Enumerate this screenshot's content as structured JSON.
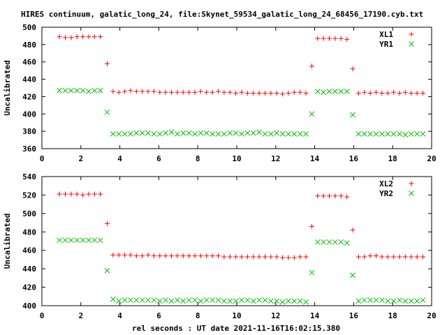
{
  "title": "HIRES continuum, galatic_long_24, file:Skynet_59534_galatic_long_24_68456_17190.cyb.txt",
  "xlabel": "rel seconds : UT date 2021-11-16T16:02:15.380",
  "colors": {
    "series1": "#ff0000",
    "series2": "#00c000",
    "axis": "#000000"
  },
  "chart_data": [
    {
      "type": "scatter",
      "ylabel": "Uncalibrated",
      "xlim": [
        0,
        20
      ],
      "ylim": [
        360,
        500
      ],
      "xticks": [
        0,
        2,
        4,
        6,
        8,
        10,
        12,
        14,
        16,
        18,
        20
      ],
      "yticks": [
        360,
        380,
        400,
        420,
        440,
        460,
        480,
        500
      ],
      "legend_position": "top-right",
      "grid": false,
      "series": [
        {
          "name": "XL1",
          "marker": "+",
          "x": [
            0.9,
            1.2,
            1.5,
            1.8,
            2.1,
            2.4,
            2.7,
            3.0,
            3.35,
            3.65,
            3.95,
            4.25,
            4.55,
            4.85,
            5.15,
            5.45,
            5.75,
            6.05,
            6.35,
            6.65,
            6.95,
            7.25,
            7.55,
            7.85,
            8.15,
            8.45,
            8.75,
            9.05,
            9.35,
            9.65,
            9.95,
            10.25,
            10.55,
            10.85,
            11.15,
            11.45,
            11.75,
            12.05,
            12.35,
            12.65,
            12.95,
            13.25,
            13.55,
            13.85,
            14.15,
            14.45,
            14.75,
            15.05,
            15.35,
            15.65,
            15.95,
            16.25,
            16.55,
            16.85,
            17.15,
            17.45,
            17.75,
            18.05,
            18.35,
            18.65,
            18.95,
            19.25,
            19.55
          ],
          "y": [
            489,
            488,
            488,
            489,
            489,
            489,
            489,
            489,
            458,
            426,
            425,
            426,
            427,
            426,
            426,
            426,
            426,
            425,
            425,
            425,
            425,
            425,
            425,
            425,
            426,
            425,
            425,
            426,
            425,
            425,
            424,
            425,
            424,
            424,
            424,
            424,
            424,
            424,
            423,
            424,
            425,
            425,
            424,
            455,
            487,
            487,
            487,
            487,
            487,
            486,
            452,
            424,
            425,
            424,
            425,
            424,
            424,
            425,
            424,
            425,
            424,
            424,
            424
          ]
        },
        {
          "name": "YR1",
          "marker": "x",
          "x": [
            0.9,
            1.2,
            1.5,
            1.8,
            2.1,
            2.4,
            2.7,
            3.0,
            3.35,
            3.65,
            3.95,
            4.25,
            4.55,
            4.85,
            5.15,
            5.45,
            5.75,
            6.05,
            6.35,
            6.65,
            6.95,
            7.25,
            7.55,
            7.85,
            8.15,
            8.45,
            8.75,
            9.05,
            9.35,
            9.65,
            9.95,
            10.25,
            10.55,
            10.85,
            11.15,
            11.45,
            11.75,
            12.05,
            12.35,
            12.65,
            12.95,
            13.25,
            13.55,
            13.85,
            14.15,
            14.45,
            14.75,
            15.05,
            15.35,
            15.65,
            15.95,
            16.25,
            16.55,
            16.85,
            17.15,
            17.45,
            17.75,
            18.05,
            18.35,
            18.65,
            18.95,
            19.25,
            19.55
          ],
          "y": [
            427,
            427,
            427,
            427,
            427,
            426,
            427,
            427,
            402,
            377,
            377,
            377,
            377,
            378,
            378,
            378,
            377,
            377,
            378,
            379,
            377,
            378,
            378,
            377,
            378,
            378,
            377,
            377,
            377,
            378,
            378,
            377,
            378,
            378,
            379,
            377,
            377,
            378,
            377,
            377,
            377,
            377,
            377,
            400,
            426,
            425,
            426,
            426,
            426,
            426,
            399,
            377,
            377,
            377,
            377,
            377,
            377,
            377,
            377,
            376,
            377,
            377,
            377
          ]
        }
      ]
    },
    {
      "type": "scatter",
      "ylabel": "Uncalibrated",
      "xlim": [
        0,
        20
      ],
      "ylim": [
        400,
        540
      ],
      "xticks": [
        0,
        2,
        4,
        6,
        8,
        10,
        12,
        14,
        16,
        18,
        20
      ],
      "yticks": [
        400,
        420,
        440,
        460,
        480,
        500,
        520,
        540
      ],
      "legend_position": "top-right",
      "grid": false,
      "series": [
        {
          "name": "XL2",
          "marker": "+",
          "x": [
            0.9,
            1.2,
            1.5,
            1.8,
            2.1,
            2.4,
            2.7,
            3.0,
            3.35,
            3.65,
            3.95,
            4.25,
            4.55,
            4.85,
            5.15,
            5.45,
            5.75,
            6.05,
            6.35,
            6.65,
            6.95,
            7.25,
            7.55,
            7.85,
            8.15,
            8.45,
            8.75,
            9.05,
            9.35,
            9.65,
            9.95,
            10.25,
            10.55,
            10.85,
            11.15,
            11.45,
            11.75,
            12.05,
            12.35,
            12.65,
            12.95,
            13.25,
            13.55,
            13.85,
            14.15,
            14.45,
            14.75,
            15.05,
            15.35,
            15.65,
            15.95,
            16.25,
            16.55,
            16.85,
            17.15,
            17.45,
            17.75,
            18.05,
            18.35,
            18.65,
            18.95,
            19.25,
            19.55
          ],
          "y": [
            521,
            521,
            521,
            521,
            520,
            521,
            521,
            521,
            489,
            455,
            455,
            455,
            455,
            454,
            454,
            455,
            454,
            454,
            454,
            454,
            454,
            454,
            454,
            454,
            454,
            454,
            454,
            454,
            453,
            453,
            453,
            453,
            453,
            453,
            453,
            453,
            453,
            453,
            452,
            452,
            452,
            453,
            453,
            486,
            519,
            519,
            519,
            519,
            519,
            518,
            482,
            453,
            453,
            454,
            454,
            453,
            453,
            453,
            453,
            453,
            453,
            453,
            453
          ]
        },
        {
          "name": "YR2",
          "marker": "x",
          "x": [
            0.9,
            1.2,
            1.5,
            1.8,
            2.1,
            2.4,
            2.7,
            3.0,
            3.35,
            3.65,
            3.95,
            4.25,
            4.55,
            4.85,
            5.15,
            5.45,
            5.75,
            6.05,
            6.35,
            6.65,
            6.95,
            7.25,
            7.55,
            7.85,
            8.15,
            8.45,
            8.75,
            9.05,
            9.35,
            9.65,
            9.95,
            10.25,
            10.55,
            10.85,
            11.15,
            11.45,
            11.75,
            12.05,
            12.35,
            12.65,
            12.95,
            13.25,
            13.55,
            13.85,
            14.15,
            14.45,
            14.75,
            15.05,
            15.35,
            15.65,
            15.95,
            16.25,
            16.55,
            16.85,
            17.15,
            17.45,
            17.75,
            18.05,
            18.35,
            18.65,
            18.95,
            19.25,
            19.55
          ],
          "y": [
            471,
            471,
            471,
            471,
            471,
            471,
            471,
            471,
            438,
            407,
            405,
            406,
            406,
            406,
            406,
            406,
            406,
            405,
            406,
            405,
            406,
            405,
            406,
            406,
            405,
            406,
            406,
            406,
            405,
            405,
            405,
            406,
            406,
            405,
            406,
            406,
            405,
            405,
            404,
            405,
            405,
            405,
            404,
            436,
            469,
            469,
            469,
            469,
            469,
            468,
            433,
            405,
            406,
            406,
            406,
            406,
            405,
            405,
            406,
            405,
            405,
            405,
            406
          ]
        }
      ]
    }
  ]
}
